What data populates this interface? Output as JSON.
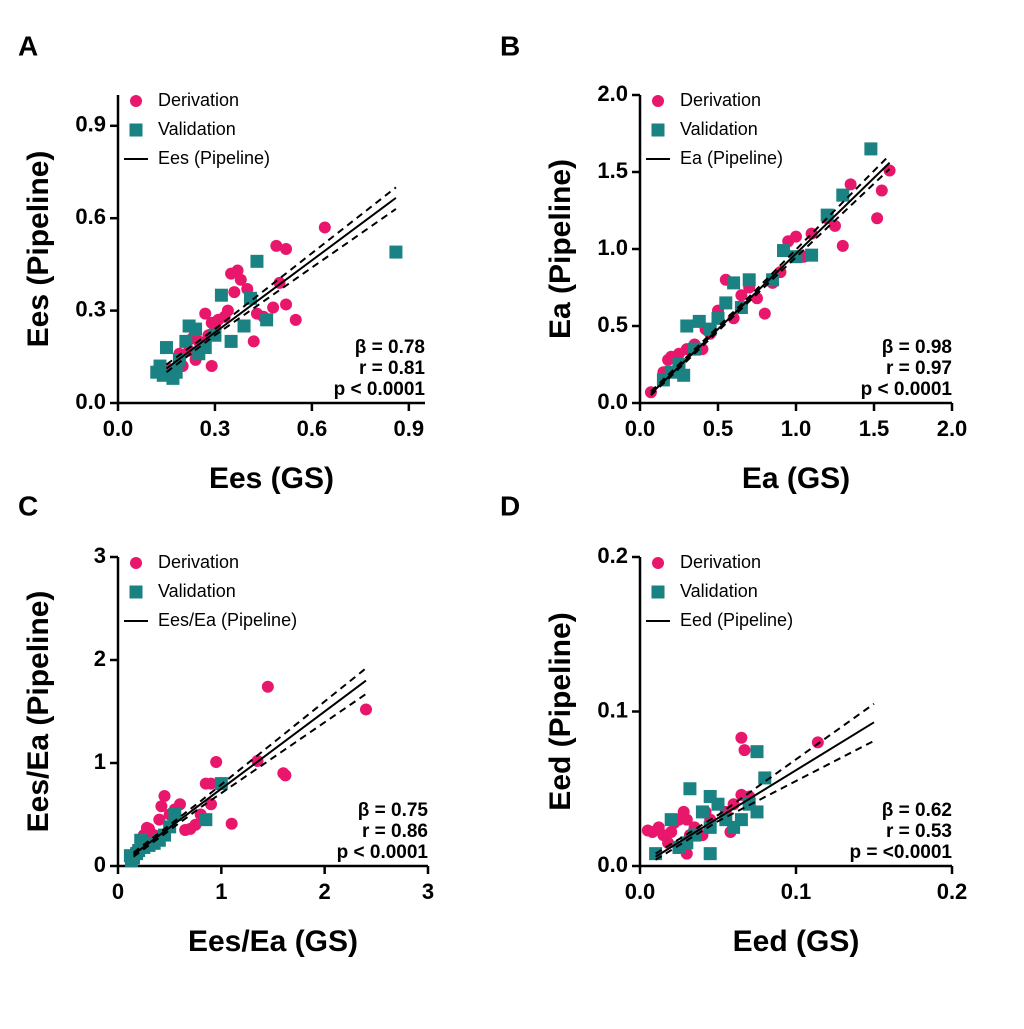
{
  "chart_data": [
    {
      "type": "scatter",
      "label": "A",
      "xlabel": "Ees (GS)",
      "ylabel": "Ees (Pipeline)",
      "xlim": [
        0,
        0.95
      ],
      "ylim": [
        0,
        1
      ],
      "xticks": [
        {
          "value": 0,
          "label": "0.0"
        },
        0.3,
        0.6,
        0.9
      ],
      "yticks": [
        {
          "value": 0,
          "label": "0.0"
        },
        0.3,
        0.6,
        0.9
      ],
      "series": [
        {
          "name": "Derivation",
          "color": "#e8176c",
          "marker": "circle",
          "x": [
            0.64,
            0.49,
            0.52,
            0.55,
            0.52,
            0.5,
            0.48,
            0.45,
            0.43,
            0.42,
            0.4,
            0.38,
            0.37,
            0.36,
            0.35,
            0.34,
            0.33,
            0.31,
            0.3,
            0.29,
            0.28,
            0.27,
            0.26,
            0.25,
            0.24,
            0.23,
            0.22,
            0.21,
            0.2,
            0.19,
            0.29,
            0.16
          ],
          "values": [
            0.57,
            0.51,
            0.5,
            0.27,
            0.32,
            0.39,
            0.31,
            0.28,
            0.29,
            0.2,
            0.37,
            0.4,
            0.43,
            0.36,
            0.42,
            0.3,
            0.28,
            0.27,
            0.25,
            0.26,
            0.22,
            0.29,
            0.18,
            0.2,
            0.14,
            0.21,
            0.17,
            0.2,
            0.12,
            0.16,
            0.12,
            0.11
          ]
        },
        {
          "name": "Validation",
          "color": "#1a8282",
          "marker": "square",
          "x": [
            0.86,
            0.43,
            0.46,
            0.41,
            0.39,
            0.35,
            0.32,
            0.3,
            0.27,
            0.25,
            0.24,
            0.22,
            0.21,
            0.19,
            0.18,
            0.17,
            0.15,
            0.14,
            0.13,
            0.12
          ],
          "values": [
            0.49,
            0.46,
            0.27,
            0.34,
            0.25,
            0.2,
            0.35,
            0.22,
            0.18,
            0.16,
            0.24,
            0.25,
            0.2,
            0.14,
            0.1,
            0.08,
            0.18,
            0.09,
            0.12,
            0.1
          ]
        }
      ],
      "fit": {
        "name": "Ees (Pipeline)",
        "x": [
          0.15,
          0.3,
          0.86
        ],
        "values": [
          0.112,
          0.229,
          0.666
        ]
      },
      "band_upper": {
        "x": [
          0.15,
          0.3,
          0.86
        ],
        "values": [
          0.125,
          0.24,
          0.7
        ]
      },
      "band_lower": {
        "x": [
          0.15,
          0.3,
          0.86
        ],
        "values": [
          0.1,
          0.22,
          0.63
        ]
      },
      "annotations": [
        "β = 0.78",
        "r = 0.81",
        "p < 0.0001"
      ]
    },
    {
      "type": "scatter",
      "label": "B",
      "xlabel": "Ea (GS)",
      "ylabel": "Ea (Pipeline)",
      "xlim": [
        0,
        2
      ],
      "ylim": [
        0,
        2
      ],
      "xticks": [
        {
          "value": 0,
          "label": "0.0"
        },
        0.5,
        {
          "value": 1,
          "label": "1.0"
        },
        1.5,
        {
          "value": 2,
          "label": "2.0"
        }
      ],
      "yticks": [
        {
          "value": 0,
          "label": "0.0"
        },
        0.5,
        {
          "value": 1,
          "label": "1.0"
        },
        1.5,
        {
          "value": 2,
          "label": "2.0"
        }
      ],
      "series": [
        {
          "name": "Derivation",
          "color": "#e8176c",
          "marker": "circle",
          "x": [
            0.07,
            0.15,
            0.2,
            0.25,
            0.3,
            0.35,
            0.4,
            0.45,
            0.5,
            0.55,
            0.6,
            0.65,
            0.7,
            0.75,
            0.8,
            0.85,
            0.9,
            0.95,
            1.0,
            1.05,
            1.1,
            1.2,
            1.25,
            1.3,
            1.35,
            1.52,
            1.55,
            1.6,
            0.18,
            0.42
          ],
          "values": [
            0.07,
            0.2,
            0.3,
            0.32,
            0.35,
            0.38,
            0.35,
            0.45,
            0.6,
            0.8,
            0.55,
            0.7,
            0.75,
            0.68,
            0.58,
            0.78,
            0.85,
            1.05,
            1.08,
            0.95,
            1.1,
            1.2,
            1.15,
            1.02,
            1.42,
            1.2,
            1.38,
            1.51,
            0.28,
            0.48
          ]
        },
        {
          "name": "Validation",
          "color": "#1a8282",
          "marker": "square",
          "x": [
            1.48,
            1.3,
            1.2,
            1.1,
            1.0,
            0.92,
            0.85,
            0.7,
            0.6,
            0.55,
            0.5,
            0.45,
            0.38,
            0.3,
            0.28,
            0.25,
            0.2,
            0.15,
            0.35,
            0.65
          ],
          "values": [
            1.65,
            1.35,
            1.22,
            0.96,
            0.95,
            0.99,
            0.8,
            0.8,
            0.78,
            0.65,
            0.55,
            0.48,
            0.53,
            0.5,
            0.18,
            0.25,
            0.2,
            0.15,
            0.35,
            0.62
          ]
        }
      ],
      "fit": {
        "name": "Ea (Pipeline)",
        "x": [
          0.07,
          0.7,
          1.6
        ],
        "values": [
          0.06,
          0.675,
          1.56
        ]
      },
      "band_upper": {
        "x": [
          0.07,
          0.7,
          1.6
        ],
        "values": [
          0.075,
          0.69,
          1.61
        ]
      },
      "band_lower": {
        "x": [
          0.07,
          0.7,
          1.6
        ],
        "values": [
          0.05,
          0.66,
          1.52
        ]
      },
      "annotations": [
        "β = 0.98",
        "r = 0.97",
        "p < 0.0001"
      ]
    },
    {
      "type": "scatter",
      "label": "C",
      "xlabel": "Ees/Ea (GS)",
      "ylabel": "Ees/Ea (Pipeline)",
      "xlim": [
        0,
        3
      ],
      "ylim": [
        0,
        3
      ],
      "xticks": [
        0,
        1,
        2,
        3
      ],
      "yticks": [
        0,
        1,
        2,
        3
      ],
      "series": [
        {
          "name": "Derivation",
          "color": "#e8176c",
          "marker": "circle",
          "x": [
            2.4,
            1.45,
            1.6,
            1.62,
            1.35,
            1.1,
            0.95,
            0.9,
            0.85,
            0.8,
            0.7,
            0.65,
            0.6,
            0.55,
            0.5,
            0.45,
            0.42,
            0.4,
            0.35,
            0.3,
            0.28,
            0.25,
            0.22,
            0.18,
            0.15,
            0.9,
            0.75
          ],
          "values": [
            1.52,
            1.74,
            0.9,
            0.88,
            1.02,
            0.41,
            1.01,
            0.8,
            0.8,
            0.5,
            0.36,
            0.35,
            0.6,
            0.55,
            0.5,
            0.68,
            0.58,
            0.45,
            0.3,
            0.36,
            0.37,
            0.3,
            0.2,
            0.15,
            0.1,
            0.6,
            0.4
          ]
        },
        {
          "name": "Validation",
          "color": "#1a8282",
          "marker": "square",
          "x": [
            1.0,
            0.85,
            0.55,
            0.5,
            0.45,
            0.4,
            0.35,
            0.3,
            0.25,
            0.22,
            0.2,
            0.18,
            0.15,
            0.12,
            0.13
          ],
          "values": [
            0.8,
            0.45,
            0.5,
            0.38,
            0.3,
            0.25,
            0.22,
            0.2,
            0.18,
            0.25,
            0.15,
            0.12,
            0.08,
            0.1,
            0.05
          ]
        }
      ],
      "fit": {
        "name": "Ees/Ea (Pipeline)",
        "x": [
          0.15,
          0.8,
          2.4
        ],
        "values": [
          0.11,
          0.6,
          1.8
        ]
      },
      "band_upper": {
        "x": [
          0.15,
          0.8,
          2.4
        ],
        "values": [
          0.13,
          0.63,
          1.92
        ]
      },
      "band_lower": {
        "x": [
          0.15,
          0.8,
          2.4
        ],
        "values": [
          0.09,
          0.57,
          1.67
        ]
      },
      "annotations": [
        "β = 0.75",
        "r = 0.86",
        "p < 0.0001"
      ]
    },
    {
      "type": "scatter",
      "label": "D",
      "xlabel": "Eed (GS)",
      "ylabel": "Eed (Pipeline)",
      "xlim": [
        0,
        0.2
      ],
      "ylim": [
        0,
        0.2
      ],
      "xticks": [
        {
          "value": 0,
          "label": "0.0"
        },
        0.1,
        0.2
      ],
      "yticks": [
        {
          "value": 0,
          "label": "0.0"
        },
        0.1,
        0.2
      ],
      "series": [
        {
          "name": "Derivation",
          "color": "#e8176c",
          "marker": "circle",
          "x": [
            0.114,
            0.065,
            0.067,
            0.065,
            0.06,
            0.055,
            0.05,
            0.045,
            0.042,
            0.04,
            0.035,
            0.032,
            0.03,
            0.028,
            0.025,
            0.022,
            0.02,
            0.018,
            0.015,
            0.012,
            0.008,
            0.005,
            0.07,
            0.058,
            0.03
          ],
          "values": [
            0.08,
            0.083,
            0.075,
            0.046,
            0.04,
            0.035,
            0.04,
            0.03,
            0.035,
            0.02,
            0.025,
            0.02,
            0.03,
            0.035,
            0.03,
            0.028,
            0.022,
            0.015,
            0.02,
            0.025,
            0.022,
            0.023,
            0.045,
            0.022,
            0.008
          ]
        },
        {
          "name": "Validation",
          "color": "#1a8282",
          "marker": "square",
          "x": [
            0.075,
            0.08,
            0.075,
            0.07,
            0.065,
            0.06,
            0.055,
            0.05,
            0.045,
            0.045,
            0.04,
            0.035,
            0.032,
            0.03,
            0.025,
            0.02,
            0.01,
            0.045
          ],
          "values": [
            0.074,
            0.057,
            0.035,
            0.04,
            0.03,
            0.025,
            0.03,
            0.04,
            0.025,
            0.008,
            0.035,
            0.02,
            0.05,
            0.015,
            0.012,
            0.03,
            0.008,
            0.045
          ]
        }
      ],
      "fit": {
        "name": "Eed (Pipeline)",
        "x": [
          0.01,
          0.05,
          0.15
        ],
        "values": [
          0.006,
          0.031,
          0.093
        ]
      },
      "band_upper": {
        "x": [
          0.01,
          0.05,
          0.15
        ],
        "values": [
          0.008,
          0.033,
          0.105
        ]
      },
      "band_lower": {
        "x": [
          0.01,
          0.05,
          0.15
        ],
        "values": [
          0.004,
          0.029,
          0.081
        ]
      },
      "annotations": [
        "β = 0.62",
        "r = 0.53",
        "p = <0.0001"
      ]
    }
  ]
}
